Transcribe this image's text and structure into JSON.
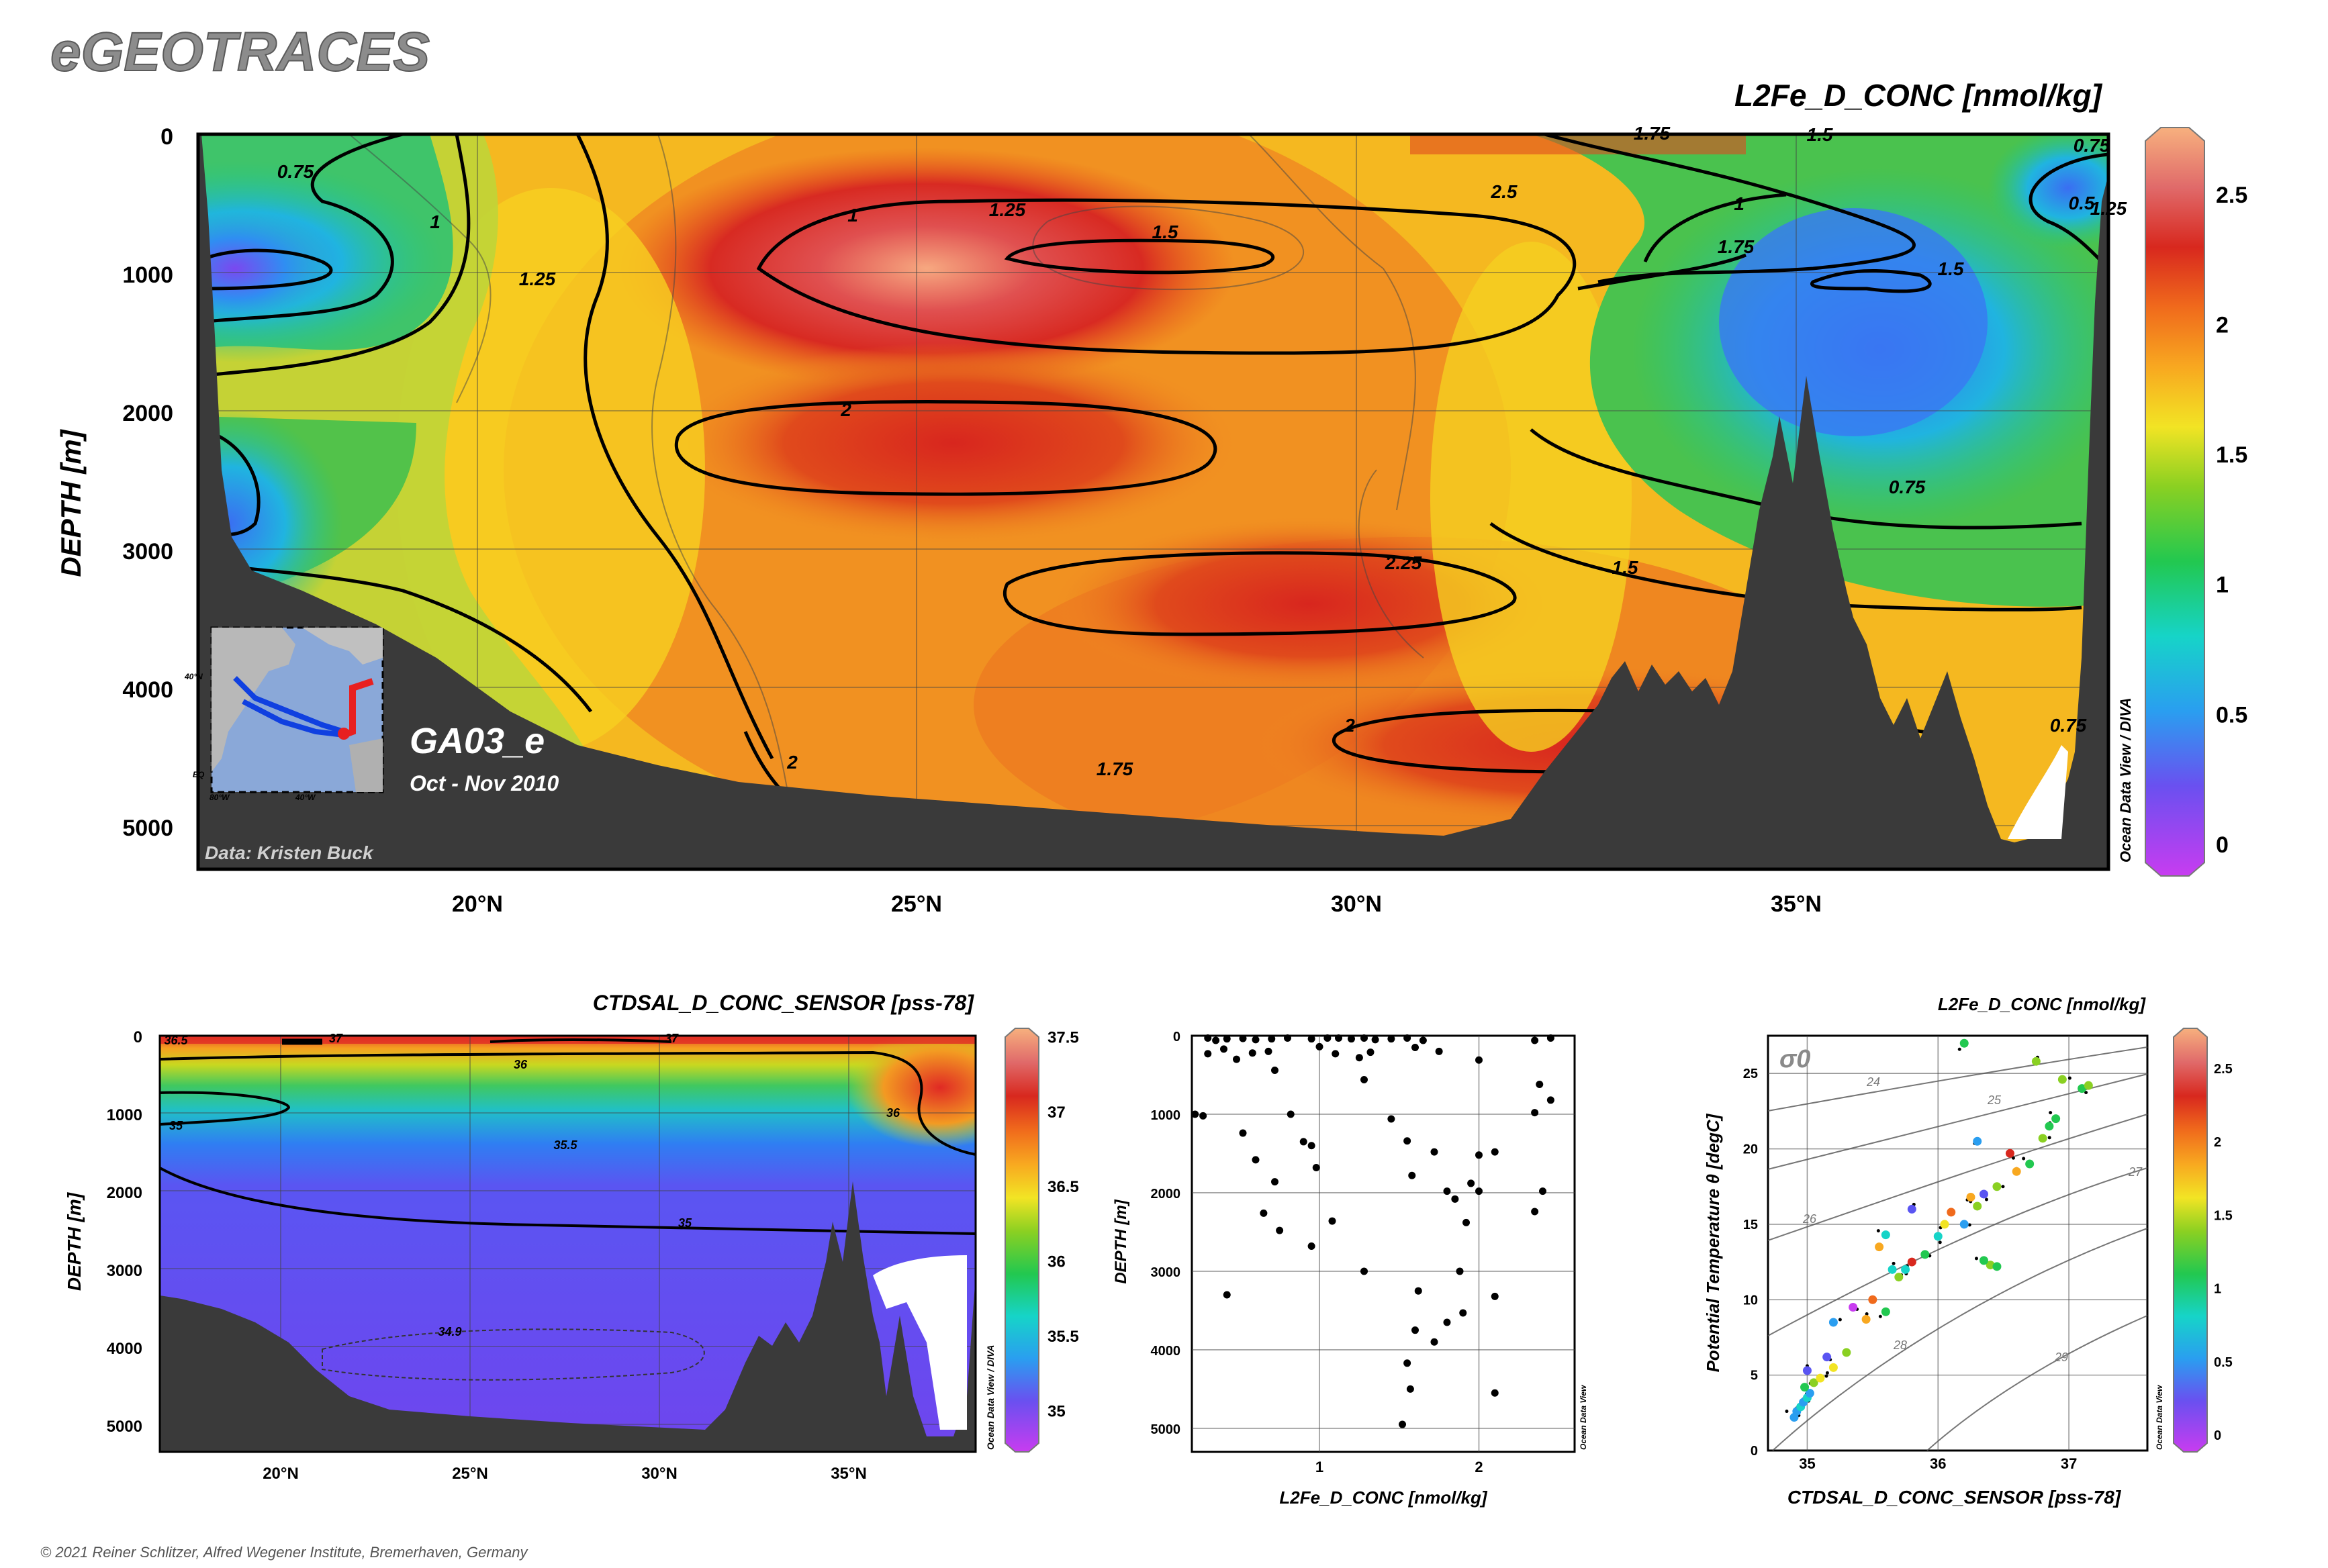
{
  "brand": "eGEOTRACES",
  "copyright": "© 2021 Reiner Schlitzer, Alfred Wegener Institute, Bremerhaven, Germany",
  "chart_data": [
    {
      "type": "heatmap",
      "title": "L2Fe_D_CONC [nmol/kg]",
      "ylabel": "DEPTH [m]",
      "xlabel": "",
      "x_ticks": [
        "20°N",
        "25°N",
        "30°N",
        "35°N"
      ],
      "y_ticks": [
        "0",
        "1000",
        "2000",
        "3000",
        "4000",
        "5000"
      ],
      "colorbar_ticks": [
        "2.5",
        "2",
        "1.5",
        "1",
        "0.5",
        "0"
      ],
      "contour_labels": [
        "0.75",
        "1",
        "1.25",
        "1",
        "1.25",
        "1.5",
        "2",
        "2.25",
        "2.5",
        "2",
        "2",
        "1.5",
        "1.75",
        "1.75",
        "1.5",
        "1",
        "0.75",
        "0.5",
        "0.75",
        "1.25",
        "0.75",
        "1.75",
        "1.5"
      ],
      "ylim": [
        0,
        5300
      ],
      "xlim": [
        16.8,
        38.5
      ],
      "section_label": "GA03_e",
      "date_label": "Oct - Nov 2010",
      "data_credit": "Data: Kristen Buck",
      "odv_credit": "Ocean Data View / DIVA",
      "inset_map_labels": [
        "40°N",
        "80°W",
        "40°W",
        "EQ"
      ]
    },
    {
      "type": "heatmap",
      "title": "CTDSAL_D_CONC_SENSOR [pss-78]",
      "ylabel": "DEPTH [m]",
      "x_ticks": [
        "20°N",
        "25°N",
        "30°N",
        "35°N"
      ],
      "y_ticks": [
        "0",
        "1000",
        "2000",
        "3000",
        "4000",
        "5000"
      ],
      "colorbar_ticks": [
        "37.5",
        "37",
        "36.5",
        "36",
        "35.5",
        "35"
      ],
      "contour_labels": [
        "36.5",
        "37",
        "37",
        "36",
        "35",
        "35.5",
        "36",
        "35",
        "34.9"
      ],
      "ylim": [
        0,
        5300
      ],
      "odv_credit": "Ocean Data View / DIVA"
    },
    {
      "type": "scatter",
      "xlabel": "L2Fe_D_CONC [nmol/kg]",
      "ylabel": "DEPTH [m]",
      "x_ticks": [
        "1",
        "2"
      ],
      "y_ticks": [
        "0",
        "1000",
        "2000",
        "3000",
        "4000",
        "5000"
      ],
      "xlim": [
        0.2,
        2.6
      ],
      "ylim": [
        0,
        5300
      ],
      "odv_credit": "Ocean Data View",
      "points": [
        [
          0.3,
          30
        ],
        [
          0.35,
          60
        ],
        [
          0.42,
          40
        ],
        [
          0.52,
          35
        ],
        [
          0.6,
          50
        ],
        [
          0.7,
          40
        ],
        [
          0.8,
          30
        ],
        [
          0.95,
          40
        ],
        [
          1.05,
          30
        ],
        [
          1.12,
          30
        ],
        [
          1.2,
          40
        ],
        [
          1.28,
          30
        ],
        [
          1.35,
          50
        ],
        [
          1.45,
          40
        ],
        [
          1.55,
          30
        ],
        [
          1.65,
          60
        ],
        [
          2.35,
          60
        ],
        [
          2.45,
          30
        ],
        [
          0.3,
          230
        ],
        [
          0.4,
          170
        ],
        [
          0.48,
          300
        ],
        [
          0.58,
          220
        ],
        [
          0.72,
          440
        ],
        [
          0.68,
          200
        ],
        [
          1.0,
          140
        ],
        [
          1.1,
          230
        ],
        [
          1.25,
          280
        ],
        [
          1.28,
          560
        ],
        [
          1.32,
          210
        ],
        [
          1.6,
          150
        ],
        [
          1.75,
          200
        ],
        [
          2.0,
          310
        ],
        [
          2.38,
          620
        ],
        [
          0.22,
          1000
        ],
        [
          0.27,
          1020
        ],
        [
          0.52,
          1240
        ],
        [
          0.82,
          1000
        ],
        [
          0.9,
          1350
        ],
        [
          1.55,
          1340
        ],
        [
          1.72,
          1480
        ],
        [
          2.1,
          1480
        ],
        [
          2.45,
          820
        ],
        [
          2.35,
          980
        ],
        [
          0.6,
          1580
        ],
        [
          0.72,
          1860
        ],
        [
          0.95,
          1400
        ],
        [
          1.45,
          1060
        ],
        [
          0.98,
          1680
        ],
        [
          1.58,
          1780
        ],
        [
          1.95,
          1880
        ],
        [
          2.0,
          1520
        ],
        [
          1.8,
          1980
        ],
        [
          1.85,
          2080
        ],
        [
          0.65,
          2260
        ],
        [
          0.75,
          2480
        ],
        [
          0.95,
          2680
        ],
        [
          1.08,
          2360
        ],
        [
          1.92,
          2380
        ],
        [
          2.35,
          2240
        ],
        [
          2.0,
          1980
        ],
        [
          2.4,
          1980
        ],
        [
          1.28,
          3000
        ],
        [
          1.88,
          3000
        ],
        [
          1.62,
          3250
        ],
        [
          1.9,
          3530
        ],
        [
          2.1,
          3320
        ],
        [
          0.42,
          3300
        ],
        [
          1.6,
          3750
        ],
        [
          1.72,
          3900
        ],
        [
          1.8,
          3650
        ],
        [
          1.55,
          4170
        ],
        [
          1.57,
          4500
        ],
        [
          2.1,
          4550
        ],
        [
          1.52,
          4950
        ]
      ]
    },
    {
      "type": "scatter",
      "xlabel": "CTDSAL_D_CONC_SENSOR [pss-78]",
      "ylabel": "Potential Temperature θ [degC]",
      "x_ticks": [
        "35",
        "36",
        "37"
      ],
      "y_ticks": [
        "0",
        "5",
        "10",
        "15",
        "20",
        "25"
      ],
      "colorbar_ticks": [
        "2.5",
        "2",
        "1.5",
        "1",
        "0.5",
        "0"
      ],
      "colorbar_title": "L2Fe_D_CONC [nmol/kg]",
      "density_labels": [
        "24",
        "25",
        "26",
        "27",
        "28",
        "29"
      ],
      "sigma_label": "σ0",
      "xlim": [
        34.7,
        37.6
      ],
      "ylim": [
        0,
        27.5
      ],
      "odv_credit": "Ocean Data View",
      "points": [
        [
          34.9,
          2.2,
          0.8
        ],
        [
          34.92,
          2.6,
          0.7
        ],
        [
          34.95,
          2.9,
          0.9
        ],
        [
          34.97,
          3.2,
          0.6
        ],
        [
          35.0,
          3.5,
          1.0
        ],
        [
          35.02,
          3.8,
          0.7
        ],
        [
          34.98,
          4.2,
          1.2
        ],
        [
          35.05,
          4.5,
          1.5
        ],
        [
          35.1,
          4.8,
          1.7
        ],
        [
          35.0,
          5.3,
          0.5
        ],
        [
          35.2,
          5.5,
          1.8
        ],
        [
          35.15,
          6.2,
          0.4
        ],
        [
          35.3,
          6.5,
          1.5
        ],
        [
          35.2,
          8.5,
          0.6
        ],
        [
          35.45,
          8.7,
          1.9
        ],
        [
          35.6,
          9.2,
          1.3
        ],
        [
          35.35,
          9.5,
          0.2
        ],
        [
          35.5,
          10.0,
          2.1
        ],
        [
          35.7,
          11.5,
          1.6
        ],
        [
          35.65,
          12.0,
          0.9
        ],
        [
          35.8,
          12.5,
          2.3
        ],
        [
          35.9,
          13.0,
          1.4
        ],
        [
          35.55,
          13.5,
          2.0
        ],
        [
          35.6,
          14.3,
          0.9
        ],
        [
          36.0,
          14.2,
          1.1
        ],
        [
          36.05,
          15.0,
          1.8
        ],
        [
          36.2,
          15.0,
          0.8
        ],
        [
          36.1,
          15.8,
          2.2
        ],
        [
          36.3,
          16.2,
          1.5
        ],
        [
          36.35,
          17.0,
          0.5
        ],
        [
          36.25,
          16.8,
          2.0
        ],
        [
          36.45,
          17.5,
          1.6
        ],
        [
          36.6,
          18.5,
          1.9
        ],
        [
          36.7,
          19.0,
          1.2
        ],
        [
          36.55,
          19.7,
          2.5
        ],
        [
          36.3,
          20.5,
          0.6
        ],
        [
          36.8,
          20.7,
          1.6
        ],
        [
          36.85,
          21.5,
          1.2
        ],
        [
          36.9,
          22.0,
          1.4
        ],
        [
          37.1,
          24.0,
          1.3
        ],
        [
          37.15,
          24.2,
          1.5
        ],
        [
          36.95,
          24.6,
          1.5
        ],
        [
          36.75,
          25.8,
          1.5
        ],
        [
          36.2,
          27.0,
          1.3
        ],
        [
          36.4,
          12.3,
          1.6
        ],
        [
          36.45,
          12.2,
          1.2
        ],
        [
          36.35,
          12.6,
          1.3
        ],
        [
          35.8,
          16.0,
          0.3
        ],
        [
          35.75,
          12.0,
          1.0
        ]
      ]
    }
  ]
}
